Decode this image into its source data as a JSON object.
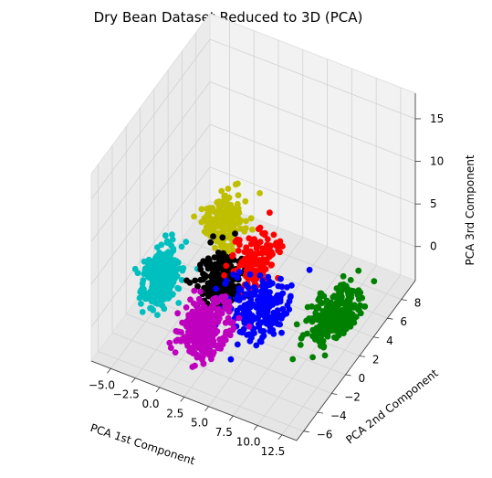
{
  "chart_data": {
    "type": "scatter",
    "projection": "3d",
    "title": "Dry Bean Dataset Reduced to 3D (PCA)",
    "xlabel": "PCA 1st Component",
    "ylabel": "PCA 2nd Component",
    "zlabel": "PCA 3rd Component",
    "xlim": [
      -7,
      14
    ],
    "ylim": [
      -7,
      10
    ],
    "zlim": [
      -4,
      18
    ],
    "xticks": [
      "−5.0",
      "−2.5",
      "0.0",
      "2.5",
      "5.0",
      "7.5",
      "10.0",
      "12.5"
    ],
    "yticks": [
      "−6",
      "−4",
      "−2",
      "0",
      "2",
      "4",
      "6",
      "8"
    ],
    "zticks": [
      "0",
      "5",
      "10",
      "15"
    ],
    "grid": true,
    "legend": false,
    "clusters": [
      {
        "color": "#00bfbf",
        "center": [
          -4.0,
          -1.0,
          0.5
        ],
        "spread": [
          0.8,
          1.0,
          1.4
        ],
        "count": 260
      },
      {
        "color": "#bfbf00",
        "center": [
          -1.0,
          3.5,
          3.5
        ],
        "spread": [
          0.9,
          1.0,
          1.4
        ],
        "count": 180
      },
      {
        "color": "#000000",
        "center": [
          0.8,
          0.5,
          0.5
        ],
        "spread": [
          0.9,
          1.0,
          1.2
        ],
        "count": 220
      },
      {
        "color": "#ff0000",
        "center": [
          3.2,
          2.5,
          2.0
        ],
        "spread": [
          1.0,
          1.0,
          1.2
        ],
        "count": 150
      },
      {
        "color": "#0000ff",
        "center": [
          5.5,
          -0.5,
          0.5
        ],
        "spread": [
          1.3,
          1.2,
          1.2
        ],
        "count": 230
      },
      {
        "color": "#bf00bf",
        "center": [
          1.5,
          -2.8,
          -1.0
        ],
        "spread": [
          1.0,
          1.1,
          1.1
        ],
        "count": 320
      },
      {
        "color": "#008000",
        "center": [
          12.2,
          1.0,
          1.0
        ],
        "spread": [
          1.0,
          1.4,
          0.8
        ],
        "count": 260
      }
    ]
  }
}
